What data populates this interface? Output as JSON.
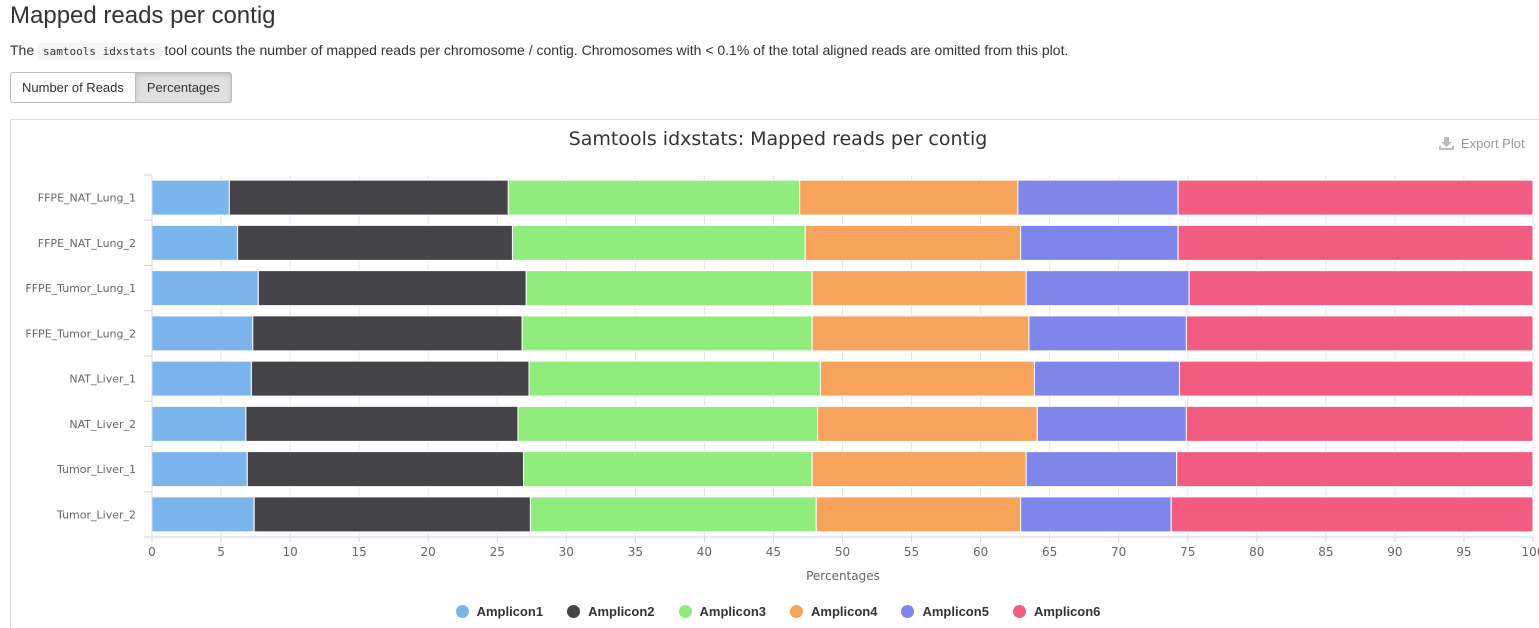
{
  "header": {
    "title": "Mapped reads per contig",
    "desc_prefix": "The",
    "desc_code": "samtools idxstats",
    "desc_suffix": "tool counts the number of mapped reads per chromosome / contig. Chromosomes with < 0.1% of the total aligned reads are omitted from this plot."
  },
  "toggle": {
    "reads_label": "Number of Reads",
    "percent_label": "Percentages",
    "active": "percent"
  },
  "export": {
    "label": "Export Plot",
    "icon": "download-icon"
  },
  "chart_data": {
    "type": "bar",
    "orientation": "horizontal",
    "stacking": "percent",
    "title": "Samtools idxstats: Mapped reads per contig",
    "xlabel": "Percentages",
    "ylabel": "",
    "xlim": [
      0,
      100
    ],
    "xticks": [
      0,
      5,
      10,
      15,
      20,
      25,
      30,
      35,
      40,
      45,
      50,
      55,
      60,
      65,
      70,
      75,
      80,
      85,
      90,
      95,
      100
    ],
    "grid": true,
    "legend": "bottom",
    "categories": [
      "FFPE_NAT_Lung_1",
      "FFPE_NAT_Lung_2",
      "FFPE_Tumor_Lung_1",
      "FFPE_Tumor_Lung_2",
      "NAT_Liver_1",
      "NAT_Liver_2",
      "Tumor_Liver_1",
      "Tumor_Liver_2"
    ],
    "series": [
      {
        "name": "Amplicon1",
        "color": "#7cb5ec",
        "values": [
          5.6,
          6.2,
          7.7,
          7.3,
          7.2,
          6.8,
          6.9,
          7.4
        ]
      },
      {
        "name": "Amplicon2",
        "color": "#434348",
        "values": [
          20.2,
          19.9,
          19.4,
          19.5,
          20.1,
          19.7,
          20.0,
          20.0
        ]
      },
      {
        "name": "Amplicon3",
        "color": "#90ed7d",
        "values": [
          21.1,
          21.2,
          20.7,
          21.0,
          21.1,
          21.7,
          20.9,
          20.7
        ]
      },
      {
        "name": "Amplicon4",
        "color": "#f7a35c",
        "values": [
          15.8,
          15.6,
          15.5,
          15.7,
          15.5,
          15.9,
          15.5,
          14.8
        ]
      },
      {
        "name": "Amplicon5",
        "color": "#8085e9",
        "values": [
          11.6,
          11.4,
          11.8,
          11.4,
          10.5,
          10.8,
          10.9,
          10.9
        ]
      },
      {
        "name": "Amplicon6",
        "color": "#f15c80",
        "values": [
          25.7,
          25.7,
          24.9,
          25.1,
          25.6,
          25.1,
          25.8,
          26.2
        ]
      }
    ]
  }
}
